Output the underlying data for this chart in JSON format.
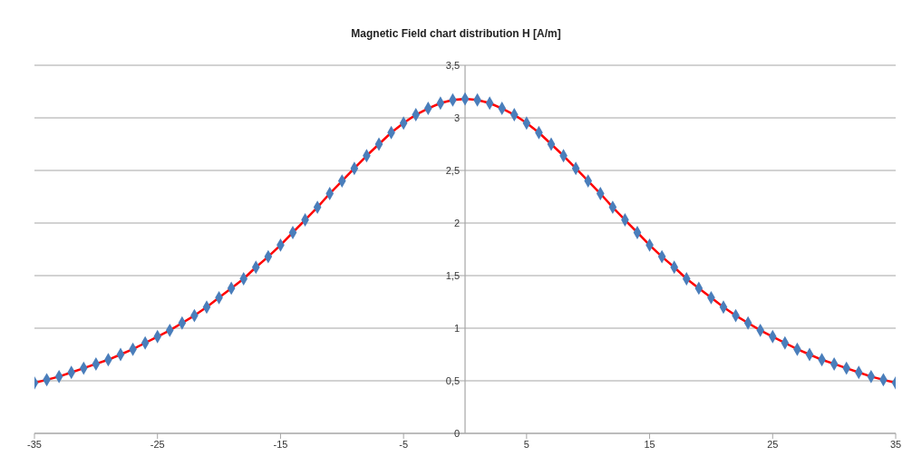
{
  "chart_data": {
    "type": "line",
    "title": "Magnetic Field chart distribution H [A/m]",
    "x": [
      -35,
      -34,
      -33,
      -32,
      -31,
      -30,
      -29,
      -28,
      -27,
      -26,
      -25,
      -24,
      -23,
      -22,
      -21,
      -20,
      -19,
      -18,
      -17,
      -16,
      -15,
      -14,
      -13,
      -12,
      -11,
      -10,
      -9,
      -8,
      -7,
      -6,
      -5,
      -4,
      -3,
      -2,
      -1,
      0,
      1,
      2,
      3,
      4,
      5,
      6,
      7,
      8,
      9,
      10,
      11,
      12,
      13,
      14,
      15,
      16,
      17,
      18,
      19,
      20,
      21,
      22,
      23,
      24,
      25,
      26,
      27,
      28,
      29,
      30,
      31,
      32,
      33,
      34,
      35
    ],
    "series": [
      {
        "color": "#ff0000",
        "values": [
          0.48,
          0.51,
          0.54,
          0.58,
          0.62,
          0.66,
          0.7,
          0.75,
          0.8,
          0.86,
          0.92,
          0.98,
          1.05,
          1.12,
          1.2,
          1.29,
          1.38,
          1.47,
          1.58,
          1.68,
          1.79,
          1.91,
          2.03,
          2.15,
          2.28,
          2.4,
          2.52,
          2.64,
          2.75,
          2.86,
          2.95,
          3.03,
          3.09,
          3.14,
          3.17,
          3.18,
          3.17,
          3.14,
          3.09,
          3.03,
          2.95,
          2.86,
          2.75,
          2.64,
          2.52,
          2.4,
          2.28,
          2.15,
          2.03,
          1.91,
          1.79,
          1.68,
          1.58,
          1.47,
          1.38,
          1.29,
          1.2,
          1.12,
          1.05,
          0.98,
          0.92,
          0.86,
          0.8,
          0.75,
          0.7,
          0.66,
          0.62,
          0.58,
          0.54,
          0.51,
          0.48
        ]
      },
      {
        "type": "scatter",
        "marker": "diamond",
        "color": "#4a7ebb",
        "values": [
          0.48,
          0.51,
          0.54,
          0.58,
          0.62,
          0.66,
          0.7,
          0.75,
          0.8,
          0.86,
          0.92,
          0.98,
          1.05,
          1.12,
          1.2,
          1.29,
          1.38,
          1.47,
          1.58,
          1.68,
          1.79,
          1.91,
          2.03,
          2.15,
          2.28,
          2.4,
          2.52,
          2.64,
          2.75,
          2.86,
          2.95,
          3.03,
          3.09,
          3.14,
          3.17,
          3.18,
          3.17,
          3.14,
          3.09,
          3.03,
          2.95,
          2.86,
          2.75,
          2.64,
          2.52,
          2.4,
          2.28,
          2.15,
          2.03,
          1.91,
          1.79,
          1.68,
          1.58,
          1.47,
          1.38,
          1.29,
          1.2,
          1.12,
          1.05,
          0.98,
          0.92,
          0.86,
          0.8,
          0.75,
          0.7,
          0.66,
          0.62,
          0.58,
          0.54,
          0.51,
          0.48
        ]
      }
    ],
    "xlim": [
      -35,
      35
    ],
    "xticks": [
      -35,
      -25,
      -15,
      -5,
      5,
      15,
      25,
      35
    ],
    "ylim": [
      0,
      3.5
    ],
    "yticks": [
      0,
      {
        "value": 0.5,
        "label": "0,5"
      },
      1,
      {
        "value": 1.5,
        "label": "1,5"
      },
      2,
      {
        "value": 2.5,
        "label": "2,5"
      },
      3,
      {
        "value": 3.5,
        "label": "3,5"
      }
    ],
    "grid": "y"
  }
}
